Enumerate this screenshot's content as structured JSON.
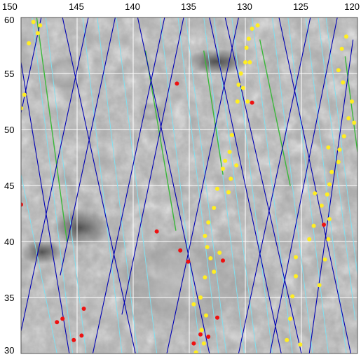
{
  "map": {
    "lon_ticks": [
      {
        "lon": 150,
        "label": "150"
      },
      {
        "lon": 145,
        "label": "145"
      },
      {
        "lon": 140,
        "label": "140"
      },
      {
        "lon": 135,
        "label": "135"
      },
      {
        "lon": 130,
        "label": "130"
      },
      {
        "lon": 125,
        "label": "125"
      },
      {
        "lon": 120,
        "label": "120"
      }
    ],
    "lat_ticks": [
      {
        "lat": 60,
        "label": "60"
      },
      {
        "lat": 55,
        "label": "55"
      },
      {
        "lat": 50,
        "label": "50"
      },
      {
        "lat": 45,
        "label": "45"
      },
      {
        "lat": 40,
        "label": "40"
      },
      {
        "lat": 35,
        "label": "35"
      },
      {
        "lat": 30,
        "label": "30"
      }
    ],
    "lon_range": [
      150,
      120
    ],
    "lat_range": [
      30,
      60
    ],
    "grid": true,
    "colors": {
      "background": "#a9a9a9",
      "grid": "#ffffff",
      "ground_track_dark": "#0000b4",
      "ground_track_light": "#7fe0f0",
      "ground_track_green": "#3ab83a",
      "point_red": "#ee1111",
      "point_yellow": "#ffee22"
    },
    "dark_tracks": [
      [
        [
          146.3,
          60
        ],
        [
          139.8,
          30
        ]
      ],
      [
        [
          139.6,
          60
        ],
        [
          133.2,
          30
        ]
      ],
      [
        [
          133.2,
          60
        ],
        [
          126.8,
          30
        ]
      ],
      [
        [
          127.0,
          60
        ],
        [
          120.6,
          30
        ]
      ],
      [
        [
          150.0,
          56.0
        ],
        [
          145.7,
          30
        ]
      ],
      [
        [
          144.0,
          60
        ],
        [
          150.0,
          32.0
        ]
      ],
      [
        [
          137.2,
          60
        ],
        [
          143.6,
          30
        ]
      ],
      [
        [
          130.6,
          60
        ],
        [
          137.0,
          30
        ]
      ],
      [
        [
          124.2,
          60
        ],
        [
          130.6,
          30
        ]
      ],
      [
        [
          120.4,
          58.0
        ],
        [
          124.3,
          30
        ]
      ],
      [
        [
          148.2,
          60
        ],
        [
          150.0,
          51.5
        ]
      ],
      [
        [
          135.5,
          60
        ],
        [
          141.0,
          33.5
        ]
      ],
      [
        [
          131.8,
          60
        ],
        [
          125.0,
          30
        ]
      ],
      [
        [
          121.8,
          60
        ],
        [
          127.8,
          30
        ]
      ],
      [
        [
          141.6,
          60
        ],
        [
          146.5,
          37.0
        ]
      ]
    ],
    "light_tracks": [
      [
        [
          149.0,
          60
        ],
        [
          145.4,
          30
        ]
      ],
      [
        [
          147.8,
          60
        ],
        [
          144.2,
          30
        ]
      ],
      [
        [
          143.2,
          60
        ],
        [
          139.6,
          30
        ]
      ],
      [
        [
          141.5,
          60
        ],
        [
          137.9,
          30
        ]
      ],
      [
        [
          137.6,
          60
        ],
        [
          134.0,
          30
        ]
      ],
      [
        [
          136.0,
          60
        ],
        [
          132.4,
          30
        ]
      ],
      [
        [
          133.7,
          60
        ],
        [
          130.1,
          30
        ]
      ],
      [
        [
          129.4,
          60
        ],
        [
          125.8,
          30
        ]
      ],
      [
        [
          127.6,
          60
        ],
        [
          124.0,
          30
        ]
      ],
      [
        [
          124.6,
          60
        ],
        [
          121.0,
          30
        ]
      ],
      [
        [
          122.8,
          60
        ],
        [
          120.0,
          37.0
        ]
      ],
      [
        [
          135.3,
          60
        ],
        [
          131.7,
          30
        ]
      ],
      [
        [
          131.2,
          60
        ],
        [
          127.6,
          30
        ]
      ],
      [
        [
          150.0,
          46.0
        ],
        [
          146.8,
          30
        ]
      ],
      [
        [
          144.5,
          60
        ],
        [
          141.0,
          30
        ]
      ],
      [
        [
          126.2,
          60
        ],
        [
          122.6,
          30
        ]
      ],
      [
        [
          132.8,
          60
        ],
        [
          129.0,
          30
        ]
      ],
      [
        [
          123.5,
          60
        ],
        [
          120.2,
          33.0
        ]
      ]
    ],
    "green_tracks": [
      [
        [
          148.6,
          60
        ],
        [
          145.9,
          40.0
        ]
      ],
      [
        [
          138.9,
          57.0
        ],
        [
          136.2,
          41.0
        ]
      ],
      [
        [
          128.7,
          58.0
        ],
        [
          126.0,
          45.0
        ]
      ],
      [
        [
          121.1,
          56.5
        ],
        [
          120.0,
          48.0
        ]
      ],
      [
        [
          133.7,
          57.0
        ],
        [
          132.0,
          46.0
        ]
      ]
    ],
    "yellow_points": [
      [
        148.9,
        59.6
      ],
      [
        148.3,
        59.3
      ],
      [
        149.3,
        57.7
      ],
      [
        148.5,
        58.6
      ],
      [
        149.7,
        53.1
      ],
      [
        150.0,
        51.9
      ],
      [
        129.4,
        59.0
      ],
      [
        128.9,
        59.3
      ],
      [
        129.7,
        58.1
      ],
      [
        129.9,
        57.3
      ],
      [
        130.0,
        56.0
      ],
      [
        129.6,
        56.0
      ],
      [
        130.4,
        55.0
      ],
      [
        130.6,
        54.0
      ],
      [
        130.2,
        53.7
      ],
      [
        130.7,
        52.5
      ],
      [
        129.8,
        52.5
      ],
      [
        131.2,
        49.5
      ],
      [
        131.4,
        48.0
      ],
      [
        131.8,
        47.2
      ],
      [
        130.8,
        46.8
      ],
      [
        132.0,
        46.5
      ],
      [
        131.3,
        45.6
      ],
      [
        132.5,
        44.7
      ],
      [
        131.5,
        44.4
      ],
      [
        132.8,
        43.0
      ],
      [
        133.3,
        41.7
      ],
      [
        133.6,
        40.5
      ],
      [
        133.4,
        39.5
      ],
      [
        132.3,
        39.0
      ],
      [
        133.1,
        38.5
      ],
      [
        132.8,
        37.3
      ],
      [
        133.6,
        36.8
      ],
      [
        134.0,
        35.0
      ],
      [
        134.6,
        34.4
      ],
      [
        133.5,
        33.4
      ],
      [
        133.9,
        32.1
      ],
      [
        133.7,
        30.9
      ],
      [
        134.4,
        30.1
      ],
      [
        121.0,
        58.3
      ],
      [
        121.4,
        57.2
      ],
      [
        121.7,
        55.3
      ],
      [
        121.3,
        54.2
      ],
      [
        120.5,
        52.5
      ],
      [
        120.8,
        51.0
      ],
      [
        120.3,
        50.6
      ],
      [
        121.2,
        49.4
      ],
      [
        121.6,
        48.2
      ],
      [
        122.6,
        48.4
      ],
      [
        121.7,
        47.1
      ],
      [
        122.3,
        46.2
      ],
      [
        122.5,
        45.1
      ],
      [
        122.7,
        44.2
      ],
      [
        123.8,
        44.3
      ],
      [
        123.2,
        43.2
      ],
      [
        123.9,
        41.4
      ],
      [
        124.3,
        40.2
      ],
      [
        122.6,
        40.2
      ],
      [
        122.9,
        38.4
      ],
      [
        125.5,
        38.6
      ],
      [
        123.4,
        36.1
      ],
      [
        125.5,
        36.9
      ],
      [
        125.8,
        35.1
      ],
      [
        126.0,
        33.1
      ],
      [
        126.3,
        31.2
      ],
      [
        125.1,
        30.8
      ],
      [
        122.5,
        42.0
      ]
    ],
    "red_points": [
      [
        136.1,
        54.1
      ],
      [
        129.4,
        52.4
      ],
      [
        150.0,
        43.3
      ],
      [
        137.9,
        40.9
      ],
      [
        135.8,
        39.2
      ],
      [
        135.1,
        38.2
      ],
      [
        132.0,
        38.3
      ],
      [
        123.0,
        41.5
      ],
      [
        146.8,
        32.8
      ],
      [
        146.3,
        33.1
      ],
      [
        144.4,
        34.0
      ],
      [
        145.3,
        31.2
      ],
      [
        144.6,
        31.6
      ],
      [
        132.5,
        33.2
      ],
      [
        134.0,
        31.7
      ],
      [
        134.6,
        30.9
      ],
      [
        133.3,
        31.5
      ]
    ]
  }
}
